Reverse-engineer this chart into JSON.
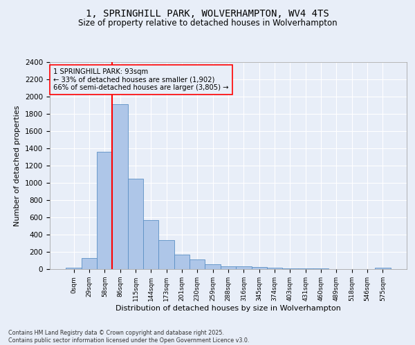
{
  "title": "1, SPRINGHILL PARK, WOLVERHAMPTON, WV4 4TS",
  "subtitle": "Size of property relative to detached houses in Wolverhampton",
  "xlabel": "Distribution of detached houses by size in Wolverhampton",
  "ylabel": "Number of detached properties",
  "footer_line1": "Contains HM Land Registry data © Crown copyright and database right 2025.",
  "footer_line2": "Contains public sector information licensed under the Open Government Licence v3.0.",
  "bin_labels": [
    "0sqm",
    "29sqm",
    "58sqm",
    "86sqm",
    "115sqm",
    "144sqm",
    "173sqm",
    "201sqm",
    "230sqm",
    "259sqm",
    "288sqm",
    "316sqm",
    "345sqm",
    "374sqm",
    "403sqm",
    "431sqm",
    "460sqm",
    "489sqm",
    "518sqm",
    "546sqm",
    "575sqm"
  ],
  "bar_values": [
    15,
    125,
    1360,
    1910,
    1050,
    565,
    335,
    170,
    110,
    60,
    35,
    30,
    25,
    20,
    5,
    5,
    5,
    0,
    0,
    0,
    15
  ],
  "bar_color": "#aec6e8",
  "bar_edge_color": "#5a8fc4",
  "background_color": "#e8eef8",
  "grid_color": "#ffffff",
  "vline_color": "red",
  "vline_x_index": 3,
  "annotation_text": "1 SPRINGHILL PARK: 93sqm\n← 33% of detached houses are smaller (1,902)\n66% of semi-detached houses are larger (3,805) →",
  "annotation_box_color": "red",
  "ylim": [
    0,
    2400
  ],
  "yticks": [
    0,
    200,
    400,
    600,
    800,
    1000,
    1200,
    1400,
    1600,
    1800,
    2000,
    2200,
    2400
  ]
}
